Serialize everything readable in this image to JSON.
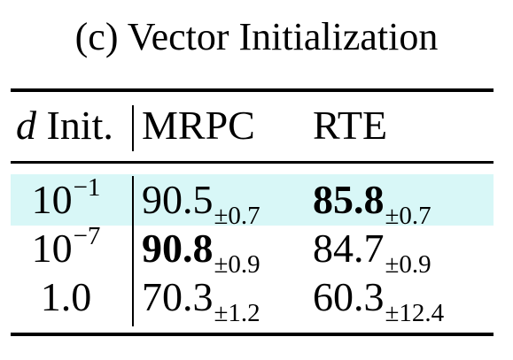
{
  "caption": "(c) Vector Initialization",
  "colors": {
    "highlight_row": "#d8f7f7",
    "text": "#000000",
    "rules": "#000000"
  },
  "table": {
    "header": {
      "init_var": "d",
      "init_label": " Init.",
      "col1": "MRPC",
      "col2": "RTE"
    },
    "rows": [
      {
        "init_base": "10",
        "init_exp": "−1",
        "highlighted": true,
        "mrpc": {
          "value": "90.5",
          "pm": "±0.7",
          "bold": false
        },
        "rte": {
          "value": "85.8",
          "pm": "±0.7",
          "bold": true
        }
      },
      {
        "init_base": "10",
        "init_exp": "−7",
        "highlighted": false,
        "mrpc": {
          "value": "90.8",
          "pm": "±0.9",
          "bold": true
        },
        "rte": {
          "value": "84.7",
          "pm": "±0.9",
          "bold": false
        }
      },
      {
        "init_base": "1.0",
        "init_exp": "",
        "highlighted": false,
        "mrpc": {
          "value": "70.3",
          "pm": "±1.2",
          "bold": false
        },
        "rte": {
          "value": "60.3",
          "pm": "±12.4",
          "bold": false
        }
      }
    ]
  }
}
